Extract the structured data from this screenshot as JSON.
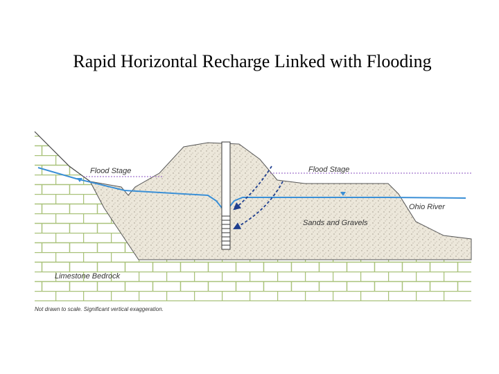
{
  "header": {
    "title": "Rapid Horizontal Recharge Linked with Flooding"
  },
  "diagram": {
    "labels": {
      "flood_stage_left": "Flood Stage",
      "flood_stage_right": "Flood Stage",
      "river": "Ohio River",
      "aquifer": "Sands and Gravels",
      "bedrock": "Limestone Bedrock",
      "note": "Not drawn to scale. Significant vertical exaggeration."
    }
  }
}
